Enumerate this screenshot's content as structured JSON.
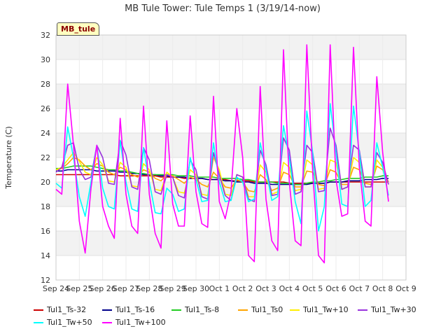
{
  "chart_data": {
    "type": "line",
    "title": "MB Tule Tower: Tule Temps 1 (3/19/14-now)",
    "ylabel": "Temperature (C)",
    "xlabel": "",
    "badge": "MB_tule",
    "ylim": [
      12,
      32
    ],
    "yticks": [
      "12",
      "14",
      "16",
      "18",
      "20",
      "22",
      "24",
      "26",
      "28",
      "30",
      "32"
    ],
    "xticks": [
      "Sep 24",
      "Sep 25",
      "Sep 26",
      "Sep 27",
      "Sep 28",
      "Sep 29",
      "Sep 30",
      "Oct 1",
      "Oct 2",
      "Oct 3",
      "Oct 4",
      "Oct 5",
      "Oct 6",
      "Oct 7",
      "Oct 8",
      "Oct 9"
    ],
    "x": [
      0.0,
      0.25,
      0.5,
      0.75,
      1.0,
      1.25,
      1.5,
      1.75,
      2.0,
      2.25,
      2.5,
      2.75,
      3.0,
      3.25,
      3.5,
      3.75,
      4.0,
      4.25,
      4.5,
      4.75,
      5.0,
      5.25,
      5.5,
      5.75,
      6.0,
      6.25,
      6.5,
      6.75,
      7.0,
      7.25,
      7.5,
      7.75,
      8.0,
      8.25,
      8.5,
      8.75,
      9.0,
      9.25,
      9.5,
      9.75,
      10.0,
      10.25,
      10.5,
      10.75,
      11.0,
      11.25,
      11.5,
      11.75,
      12.0,
      12.25,
      12.5,
      12.75,
      13.0,
      13.25,
      13.5,
      13.75,
      14.0,
      14.25
    ],
    "x_axis_note": "days since Sep 24",
    "grid": true,
    "legend_position": "bottom",
    "series": [
      {
        "name": "Tul1_Ts-32",
        "color": "#cc0000",
        "values": [
          20.6,
          20.6,
          20.6,
          20.6,
          20.6,
          20.6,
          20.6,
          20.6,
          20.6,
          20.6,
          20.6,
          20.5,
          20.5,
          20.5,
          20.5,
          20.5,
          20.5,
          20.5,
          20.4,
          20.4,
          20.4,
          20.4,
          20.3,
          20.3,
          20.3,
          20.3,
          20.2,
          20.2,
          20.2,
          20.2,
          20.1,
          20.1,
          20.1,
          20.1,
          20.0,
          20.0,
          20.0,
          20.0,
          20.0,
          20.0,
          19.9,
          19.9,
          19.9,
          19.9,
          19.9,
          19.9,
          19.9,
          20.0,
          20.0,
          20.0,
          20.0,
          20.0,
          20.0,
          20.0,
          20.0,
          20.0,
          20.0,
          20.0
        ]
      },
      {
        "name": "Tul1_Ts-16",
        "color": "#00008b",
        "values": [
          20.9,
          20.9,
          21.0,
          21.0,
          21.0,
          21.0,
          21.0,
          20.9,
          20.9,
          20.9,
          20.9,
          20.8,
          20.8,
          20.7,
          20.7,
          20.6,
          20.6,
          20.6,
          20.5,
          20.5,
          20.4,
          20.4,
          20.4,
          20.3,
          20.3,
          20.3,
          20.2,
          20.2,
          20.2,
          20.1,
          20.1,
          20.0,
          20.0,
          20.0,
          19.9,
          19.9,
          19.9,
          19.8,
          19.8,
          19.8,
          19.8,
          19.8,
          19.8,
          19.8,
          19.9,
          19.9,
          19.9,
          20.0,
          20.0,
          20.0,
          20.1,
          20.1,
          20.1,
          20.2,
          20.2,
          20.2,
          20.3,
          20.3
        ]
      },
      {
        "name": "Tul1_Ts-8",
        "color": "#22cc22",
        "values": [
          21.1,
          21.1,
          21.2,
          21.3,
          21.3,
          21.3,
          21.3,
          21.2,
          21.1,
          21.0,
          21.0,
          20.9,
          20.9,
          20.8,
          20.7,
          20.7,
          20.6,
          20.6,
          20.6,
          20.6,
          20.6,
          20.5,
          20.5,
          20.5,
          20.4,
          20.4,
          20.4,
          20.4,
          20.3,
          20.3,
          20.3,
          20.3,
          20.2,
          20.2,
          20.1,
          20.0,
          20.0,
          20.0,
          19.9,
          19.9,
          19.9,
          19.8,
          19.8,
          19.9,
          20.0,
          20.0,
          20.1,
          20.1,
          20.2,
          20.2,
          20.3,
          20.3,
          20.3,
          20.4,
          20.4,
          20.4,
          20.5,
          20.5
        ]
      },
      {
        "name": "Tul1_Ts0",
        "color": "#ffa500",
        "values": [
          21.0,
          21.1,
          21.5,
          22.0,
          21.8,
          21.3,
          21.0,
          21.5,
          21.3,
          20.8,
          20.6,
          21.2,
          21.0,
          20.6,
          20.4,
          21.0,
          20.8,
          20.3,
          20.1,
          20.6,
          20.5,
          20.2,
          19.9,
          20.4,
          20.2,
          19.8,
          19.6,
          20.8,
          20.3,
          19.6,
          19.5,
          20.2,
          20.0,
          19.3,
          19.2,
          20.6,
          20.2,
          19.3,
          19.5,
          20.8,
          20.6,
          19.6,
          19.6,
          20.9,
          20.8,
          19.8,
          19.7,
          21.0,
          20.8,
          19.8,
          19.8,
          21.2,
          21.0,
          19.9,
          19.8,
          21.3,
          21.0,
          20.0
        ]
      },
      {
        "name": "Tul1_Tw+10",
        "color": "#ffee00",
        "values": [
          21.0,
          21.2,
          21.8,
          22.4,
          21.7,
          20.8,
          20.6,
          22.0,
          21.4,
          20.1,
          20.0,
          21.6,
          21.2,
          19.7,
          19.6,
          21.5,
          21.0,
          19.4,
          19.3,
          20.8,
          20.4,
          19.2,
          19.1,
          21.0,
          20.6,
          19.0,
          18.9,
          22.0,
          21.0,
          19.0,
          18.9,
          20.6,
          20.4,
          18.8,
          18.8,
          21.4,
          20.8,
          19.0,
          19.2,
          21.6,
          21.2,
          19.3,
          19.4,
          21.8,
          21.4,
          19.4,
          19.5,
          21.8,
          21.6,
          19.4,
          19.6,
          22.0,
          21.6,
          19.6,
          19.6,
          21.8,
          21.2,
          19.8
        ]
      },
      {
        "name": "Tul1_Tw+30",
        "color": "#9933dd",
        "values": [
          20.8,
          21.2,
          23.0,
          23.2,
          21.0,
          20.2,
          20.4,
          23.0,
          22.0,
          19.9,
          19.8,
          23.4,
          22.2,
          19.6,
          19.4,
          22.8,
          21.8,
          19.2,
          19.0,
          20.6,
          20.4,
          18.9,
          18.7,
          21.8,
          21.0,
          18.8,
          18.6,
          22.4,
          20.6,
          18.9,
          18.5,
          20.6,
          20.4,
          18.6,
          18.4,
          22.6,
          21.4,
          18.9,
          19.0,
          23.6,
          22.6,
          19.0,
          19.2,
          23.0,
          22.4,
          19.2,
          19.3,
          24.4,
          23.0,
          19.4,
          19.6,
          23.0,
          22.6,
          19.6,
          19.6,
          22.4,
          21.6,
          19.8
        ]
      },
      {
        "name": "Tul1_Tw+50",
        "color": "#00ffff",
        "values": [
          19.9,
          19.5,
          24.5,
          22.0,
          18.8,
          17.2,
          20.0,
          23.0,
          19.5,
          18.0,
          17.8,
          23.4,
          20.0,
          17.8,
          17.6,
          22.8,
          20.0,
          17.5,
          17.4,
          19.5,
          19.0,
          17.6,
          17.8,
          22.0,
          20.2,
          18.4,
          18.5,
          23.2,
          20.0,
          18.4,
          18.5,
          20.4,
          20.0,
          18.4,
          18.6,
          23.2,
          21.0,
          18.5,
          18.8,
          24.6,
          22.0,
          18.4,
          16.6,
          25.8,
          22.4,
          16.0,
          18.0,
          26.4,
          22.4,
          18.2,
          18.0,
          26.2,
          22.4,
          18.0,
          18.5,
          23.2,
          21.2,
          18.9
        ]
      },
      {
        "name": "Tul1_Tw+100",
        "color": "#ff00ff",
        "values": [
          19.4,
          19.0,
          28.0,
          23.0,
          16.8,
          14.2,
          19.5,
          23.0,
          18.0,
          16.4,
          15.4,
          25.2,
          19.0,
          16.4,
          15.8,
          26.2,
          19.0,
          15.8,
          14.6,
          25.0,
          18.2,
          16.4,
          16.4,
          25.4,
          19.2,
          16.6,
          16.3,
          27.0,
          18.4,
          17.0,
          19.2,
          26.0,
          22.0,
          14.0,
          13.5,
          27.8,
          18.6,
          15.2,
          14.4,
          30.8,
          20.0,
          15.2,
          14.8,
          31.2,
          20.8,
          14.0,
          13.4,
          31.2,
          20.2,
          17.2,
          17.4,
          31.0,
          21.2,
          16.8,
          16.4,
          28.6,
          22.4,
          18.4
        ]
      }
    ]
  }
}
